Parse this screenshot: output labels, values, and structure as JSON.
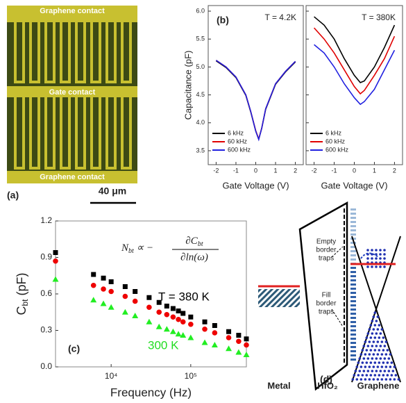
{
  "panel_a": {
    "labels": [
      "Graphene contact",
      "Gate contact",
      "Graphene contact"
    ],
    "panel_label": "(a)",
    "scale_bar": "40 μm"
  },
  "chart_data": [
    {
      "type": "line",
      "panel_label": "(b)",
      "temperature": "T = 4.2K",
      "xlabel": "Gate Voltage (V)",
      "ylabel": "Capacitance (pF)",
      "x": [
        -2,
        -1.5,
        -1,
        -0.5,
        -0.25,
        0,
        0.15,
        0.3,
        0.5,
        1,
        1.5,
        2
      ],
      "series": [
        {
          "name": "6 kHz",
          "color": "#000000",
          "values": [
            5.11,
            4.99,
            4.81,
            4.49,
            4.19,
            3.85,
            3.71,
            3.9,
            4.24,
            4.69,
            4.91,
            5.09
          ]
        },
        {
          "name": "60 kHz",
          "color": "#e00000",
          "values": [
            5.12,
            5.0,
            4.82,
            4.5,
            4.2,
            3.86,
            3.71,
            3.9,
            4.25,
            4.7,
            4.92,
            5.1
          ]
        },
        {
          "name": "600 kHz",
          "color": "#2020e0",
          "values": [
            5.12,
            5.0,
            4.82,
            4.5,
            4.2,
            3.85,
            3.7,
            3.9,
            4.25,
            4.7,
            4.92,
            5.1
          ]
        }
      ],
      "xlim": [
        -2.4,
        2.4
      ],
      "xticks": [
        -2,
        -1,
        0,
        1,
        2
      ],
      "ylim": [
        3.25,
        6.1
      ],
      "yticks": [
        3.5,
        {
          "value": 4,
          "label": "4.0"
        },
        4.5,
        {
          "value": 5,
          "label": "5.0"
        },
        5.5,
        {
          "value": 6,
          "label": "6.0"
        }
      ],
      "ytick_labels": true
    },
    {
      "type": "line",
      "temperature": "T = 380K",
      "xlabel": "Gate Voltage (V)",
      "x": [
        -2,
        -1.5,
        -1,
        -0.5,
        0,
        0.3,
        0.5,
        1,
        1.5,
        2
      ],
      "series": [
        {
          "name": "6 kHz",
          "color": "#000000",
          "values": [
            5.9,
            5.75,
            5.5,
            5.15,
            4.85,
            4.72,
            4.75,
            5.0,
            5.35,
            5.75
          ]
        },
        {
          "name": "60 kHz",
          "color": "#e00000",
          "values": [
            5.7,
            5.5,
            5.25,
            4.95,
            4.65,
            4.52,
            4.58,
            4.85,
            5.15,
            5.55
          ]
        },
        {
          "name": "600 kHz",
          "color": "#2020e0",
          "values": [
            5.4,
            5.25,
            5.0,
            4.7,
            4.45,
            4.33,
            4.38,
            4.6,
            4.95,
            5.3
          ]
        }
      ],
      "xlim": [
        -2.4,
        2.4
      ],
      "xticks": [
        -2,
        -1,
        0,
        1,
        2
      ],
      "ylim": [
        3.25,
        6.1
      ],
      "yticks": [
        3.5,
        4,
        4.5,
        5,
        5.5,
        6
      ],
      "ytick_labels": false
    },
    {
      "type": "scatter",
      "panel_label": "(c)",
      "log_x": true,
      "xlabel": "Frequency (Hz)",
      "ylabel": {
        "main": "C",
        "sub": "bt",
        "rest": " (pF)"
      },
      "formula": {
        "lhs": "N",
        "lhs_sub": "bt",
        "rel": " ∝ −",
        "num": "∂C",
        "num_sub": "bt",
        "den": "∂ln(ω)"
      },
      "annotations": [
        {
          "text": "T = 380 K",
          "color": "#000000"
        },
        {
          "text": "300 K",
          "color": "#22dd22"
        }
      ],
      "x": [
        2000,
        6000,
        8000,
        10000,
        15000,
        20000,
        30000,
        40000,
        50000,
        60000,
        70000,
        80000,
        100000,
        150000,
        200000,
        300000,
        400000,
        500000
      ],
      "series": [
        {
          "marker": "square",
          "color": "#000000",
          "values": [
            0.94,
            0.76,
            0.73,
            0.7,
            0.66,
            0.62,
            0.57,
            0.53,
            0.5,
            0.48,
            0.46,
            0.44,
            0.41,
            0.37,
            0.34,
            0.29,
            0.26,
            0.23
          ]
        },
        {
          "marker": "circle",
          "color": "#ee0000",
          "values": [
            0.87,
            0.67,
            0.64,
            0.62,
            0.58,
            0.54,
            0.49,
            0.45,
            0.43,
            0.41,
            0.39,
            0.37,
            0.35,
            0.31,
            0.28,
            0.24,
            0.21,
            0.18
          ]
        },
        {
          "marker": "triangle",
          "color": "#22ee22",
          "values": [
            0.72,
            0.55,
            0.52,
            0.49,
            0.45,
            0.42,
            0.37,
            0.33,
            0.31,
            0.29,
            0.27,
            0.26,
            0.24,
            0.2,
            0.18,
            0.15,
            0.12,
            0.1
          ]
        }
      ],
      "xlim": [
        2000,
        500000
      ],
      "xticks": [
        {
          "value": 10000,
          "label": "10⁴"
        },
        {
          "value": 100000,
          "label": "10⁵"
        }
      ],
      "ylim": [
        0,
        1.2
      ],
      "yticks": [
        {
          "value": 0,
          "label": "0.0"
        },
        0.3,
        0.6,
        0.9,
        1.2
      ]
    }
  ],
  "panel_d": {
    "empty_traps": [
      "Empty",
      "border",
      "traps"
    ],
    "fill_traps": [
      "Fill",
      "border",
      "traps"
    ],
    "panel_label": "(d)",
    "metal": "Metal",
    "oxide": "HfO₂",
    "graphene": "Graphene"
  }
}
